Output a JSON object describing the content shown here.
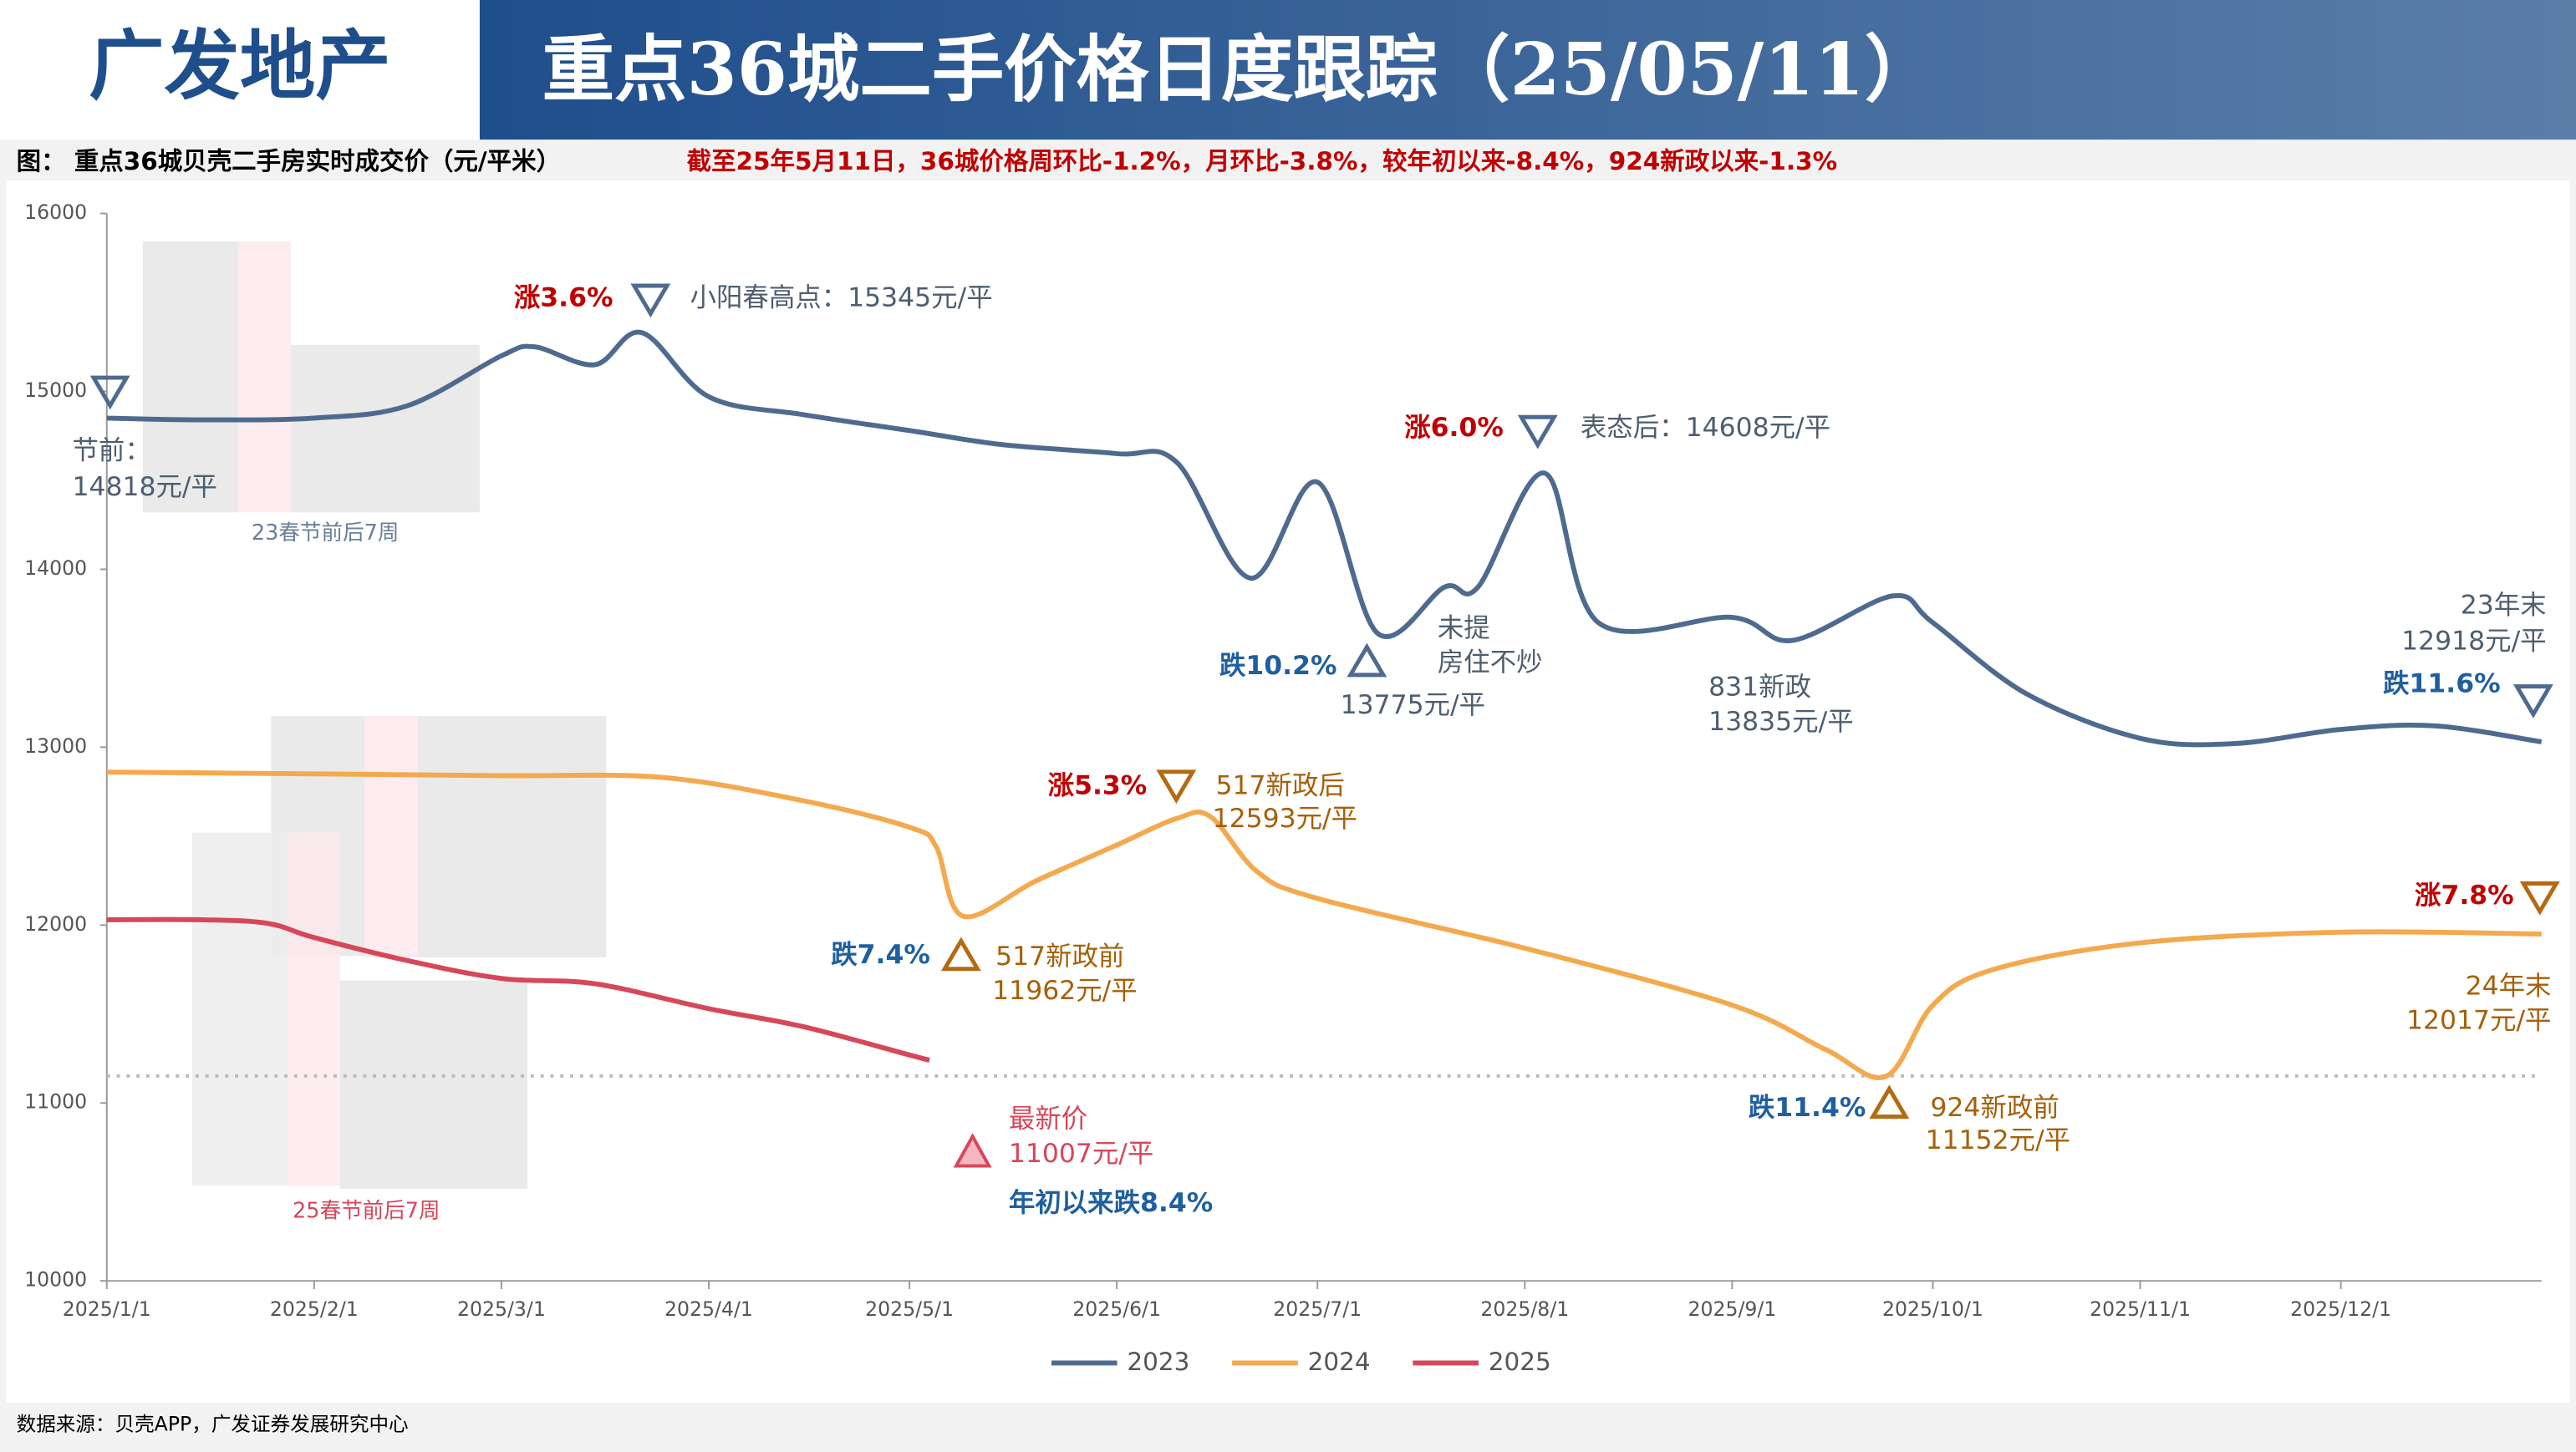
{
  "header": {
    "brand": "广发地产",
    "title": "重点36城二手价格日度跟踪（25/05/11）"
  },
  "subtitle": "图：  重点36城贝壳二手房实时成交价（元/平米）",
  "highlight": "截至25年5月11日，36城价格周环比-1.2%，月环比-3.8%，较年初以来-8.4%，924新政以来-1.3%",
  "source": "数据来源：贝壳APP，广发证券发展研究中心",
  "chart_data": {
    "type": "line",
    "xlim": [
      "2025/1/1",
      "2025/12/31"
    ],
    "xticks": [
      "2025/1/1",
      "2025/2/1",
      "2025/3/1",
      "2025/4/1",
      "2025/5/1",
      "2025/6/1",
      "2025/7/1",
      "2025/8/1",
      "2025/9/1",
      "2025/10/1",
      "2025/11/1",
      "2025/12/1"
    ],
    "ylim": [
      10000,
      16000
    ],
    "yticks": [
      10000,
      11000,
      12000,
      13000,
      14000,
      15000,
      16000
    ],
    "grid": false,
    "reference_line": 11152,
    "series": [
      {
        "name": "2023",
        "color": "#4e6b8f",
        "x": [
          "2025/1/1",
          "2025/1/15",
          "2025/2/1",
          "2025/2/15",
          "2025/3/1",
          "2025/3/6",
          "2025/3/15",
          "2025/3/22",
          "2025/4/1",
          "2025/4/15",
          "2025/5/1",
          "2025/5/15",
          "2025/6/1",
          "2025/6/10",
          "2025/6/21",
          "2025/7/1",
          "2025/7/10",
          "2025/7/20",
          "2025/7/25",
          "2025/8/4",
          "2025/8/12",
          "2025/9/1",
          "2025/9/10",
          "2025/9/25",
          "2025/10/1",
          "2025/10/15",
          "2025/11/1",
          "2025/11/15",
          "2025/12/1",
          "2025/12/15",
          "2025/12/31"
        ],
        "values": [
          14850,
          14840,
          14850,
          14920,
          15200,
          15250,
          15150,
          15330,
          14970,
          14870,
          14780,
          14700,
          14650,
          14600,
          13950,
          14490,
          13640,
          13900,
          13900,
          14540,
          13700,
          13730,
          13600,
          13850,
          13700,
          13300,
          13050,
          13020,
          13100,
          13120,
          13030
        ]
      },
      {
        "name": "2024",
        "color": "#f4a94e",
        "x": [
          "2025/1/1",
          "2025/2/1",
          "2025/3/1",
          "2025/3/25",
          "2025/4/15",
          "2025/5/1",
          "2025/5/5",
          "2025/5/9",
          "2025/5/20",
          "2025/6/1",
          "2025/6/10",
          "2025/6/15",
          "2025/6/22",
          "2025/7/1",
          "2025/8/1",
          "2025/9/1",
          "2025/9/15",
          "2025/9/24",
          "2025/10/1",
          "2025/10/10",
          "2025/11/1",
          "2025/12/1",
          "2025/12/31"
        ],
        "values": [
          12860,
          12850,
          12840,
          12830,
          12700,
          12550,
          12440,
          12050,
          12250,
          12450,
          12600,
          12610,
          12300,
          12150,
          11870,
          11550,
          11300,
          11150,
          11550,
          11750,
          11900,
          11960,
          11950
        ]
      },
      {
        "name": "2025",
        "color": "#d6475a",
        "x": [
          "2025/1/1",
          "2025/1/15",
          "2025/1/25",
          "2025/2/1",
          "2025/2/15",
          "2025/3/1",
          "2025/3/15",
          "2025/4/1",
          "2025/4/15",
          "2025/5/1",
          "2025/5/4"
        ],
        "values": [
          12030,
          12030,
          12010,
          11930,
          11800,
          11700,
          11670,
          11530,
          11430,
          11270,
          11240
        ]
      }
    ],
    "annotations": [
      "涨3.6%",
      "小阳春高点：15345元/平",
      "节前：",
      "14818元/平",
      "23春节前后7周",
      "涨6.0%",
      "表态后：14608元/平",
      "跌10.2%",
      "13775元/平",
      "未提",
      "房住不炒",
      "831新政",
      "13835元/平",
      "23年末",
      "12918元/平",
      "跌11.6%",
      "涨5.3%",
      "517新政后",
      "12593元/平",
      "跌7.4%",
      "517新政前",
      "11962元/平",
      "跌11.4%",
      "924新政前",
      "11152元/平",
      "涨7.8%",
      "24年末",
      "12017元/平",
      "最新价",
      "11007元/平",
      "25春节前后7周",
      "年初以来跌8.4%"
    ]
  }
}
